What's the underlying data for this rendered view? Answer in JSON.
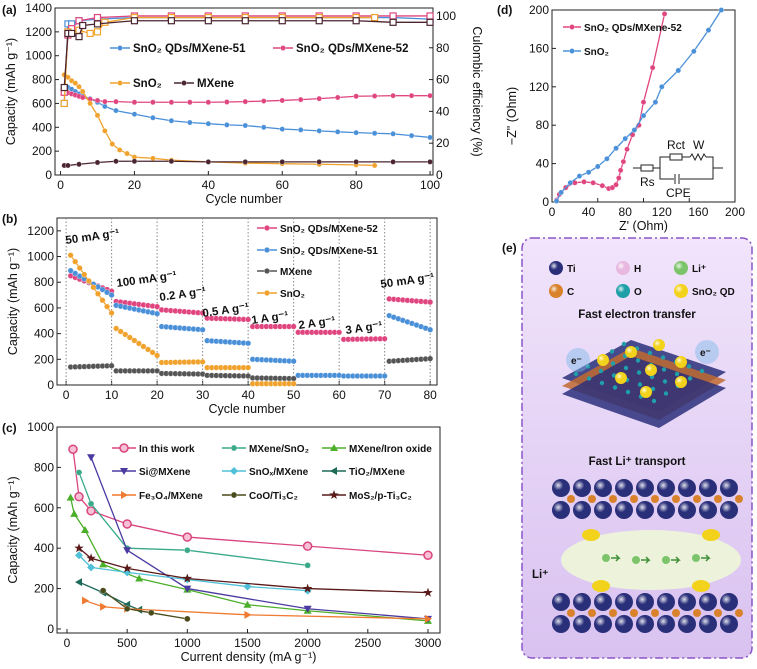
{
  "panels": {
    "a": "(a)",
    "b": "(b)",
    "c": "(c)",
    "d": "(d)",
    "e": "(e)"
  },
  "colors": {
    "blue": "#4a90d9",
    "pink": "#e0457f",
    "orange": "#f0a22c",
    "dark": "#4a2530",
    "grey": "#555555"
  },
  "chart_data": [
    {
      "id": "a",
      "type": "line",
      "xlabel": "Cycle number",
      "ylabel": "Capacity (mAh g⁻¹)",
      "y2label": "Culombic efficiency (%)",
      "xlim": [
        0,
        100
      ],
      "ylim": [
        0,
        1400
      ],
      "y2lim": [
        0,
        105
      ],
      "xticks": [
        0,
        20,
        40,
        60,
        80,
        100
      ],
      "yticks": [
        0,
        200,
        400,
        600,
        800,
        1000,
        1200,
        1400
      ],
      "y2ticks": [
        0,
        20,
        40,
        60,
        80,
        100
      ],
      "series": [
        {
          "name": "SnO₂ QDs/MXene-51",
          "color": "#4a90d9",
          "x": [
            1,
            2,
            3,
            4,
            5,
            6,
            8,
            10,
            12,
            15,
            20,
            25,
            30,
            35,
            40,
            45,
            50,
            55,
            60,
            65,
            70,
            75,
            80,
            85,
            90,
            95,
            100
          ],
          "y": [
            740,
            735,
            720,
            700,
            680,
            665,
            640,
            610,
            575,
            540,
            510,
            480,
            455,
            440,
            430,
            420,
            415,
            400,
            385,
            378,
            370,
            362,
            355,
            350,
            345,
            330,
            315
          ],
          "ce_x": [
            1,
            2,
            3,
            5,
            10,
            20,
            30,
            40,
            50,
            60,
            70,
            80,
            90,
            100
          ],
          "ce": [
            45,
            95,
            95,
            97,
            98,
            99,
            99,
            99,
            99,
            99,
            99,
            99,
            99,
            98
          ]
        },
        {
          "name": "SnO₂ QDs/MXene-52",
          "color": "#e0457f",
          "x": [
            1,
            2,
            3,
            4,
            5,
            6,
            8,
            10,
            12,
            15,
            20,
            25,
            30,
            35,
            40,
            45,
            50,
            55,
            60,
            65,
            70,
            75,
            80,
            85,
            90,
            95,
            100
          ],
          "y": [
            700,
            690,
            680,
            670,
            660,
            650,
            635,
            625,
            615,
            615,
            610,
            610,
            610,
            610,
            610,
            612,
            615,
            620,
            625,
            632,
            640,
            650,
            660,
            662,
            665,
            665,
            665
          ],
          "ce_x": [
            1,
            2,
            3,
            5,
            10,
            20,
            30,
            40,
            50,
            60,
            70,
            80,
            90,
            100
          ],
          "ce": [
            52,
            88,
            92,
            97,
            99,
            100,
            100,
            100,
            100,
            100,
            100,
            100,
            100,
            100
          ]
        },
        {
          "name": "SnO₂",
          "color": "#f0a22c",
          "x": [
            1,
            2,
            3,
            4,
            5,
            6,
            8,
            10,
            12,
            14,
            16,
            18,
            20,
            25,
            30,
            40,
            50,
            60,
            70,
            80,
            85
          ],
          "y": [
            840,
            820,
            790,
            770,
            740,
            700,
            600,
            500,
            370,
            260,
            210,
            180,
            150,
            140,
            125,
            110,
            100,
            95,
            90,
            85,
            80
          ],
          "ce_x": [
            1,
            2,
            5,
            8,
            10,
            12,
            20,
            30,
            40,
            50,
            60,
            70,
            80,
            85
          ],
          "ce": [
            45,
            90,
            91,
            89,
            90,
            96,
            99,
            99,
            99,
            99,
            99,
            99,
            99,
            99
          ]
        },
        {
          "name": "MXene",
          "color": "#4a2530",
          "x": [
            1,
            2,
            5,
            10,
            15,
            20,
            30,
            40,
            50,
            60,
            70,
            80,
            90,
            100
          ],
          "y": [
            80,
            80,
            90,
            105,
            115,
            115,
            115,
            110,
            110,
            110,
            110,
            110,
            110,
            110
          ],
          "ce_x": [
            1,
            2,
            3,
            5,
            6,
            10,
            20,
            30,
            40,
            50,
            60,
            70,
            80,
            90,
            100
          ],
          "ce": [
            55,
            89,
            89,
            87,
            94,
            95,
            97,
            97,
            97,
            97,
            97,
            97,
            97,
            96,
            96
          ]
        }
      ]
    },
    {
      "id": "b",
      "type": "line",
      "xlabel": "Cycle number",
      "ylabel": "Capacity (mAh g⁻¹)",
      "xlim": [
        0,
        80
      ],
      "ylim": [
        0,
        1300
      ],
      "xticks": [
        0,
        10,
        20,
        30,
        40,
        50,
        60,
        70,
        80
      ],
      "yticks": [
        0,
        200,
        400,
        600,
        800,
        1000,
        1200
      ],
      "rates": [
        "50 mA g⁻¹",
        "100 mA g⁻¹",
        "0.2 A g⁻¹",
        "0.5 A g⁻¹",
        "1 A g⁻¹",
        "2 A g⁻¹",
        "3 A g⁻¹",
        "50 mA g⁻¹"
      ],
      "series": [
        {
          "name": "SnO₂ QDs/MXene-52",
          "color": "#e0457f",
          "segments": [
            [
              850,
              730
            ],
            [
              650,
              610
            ],
            [
              585,
              560
            ],
            [
              520,
              510
            ],
            [
              455,
              455
            ],
            [
              410,
              410
            ],
            [
              355,
              360
            ],
            [
              670,
              645
            ]
          ]
        },
        {
          "name": "SnO₂ QDs/MXene-51",
          "color": "#4a90d9",
          "segments": [
            [
              890,
              700
            ],
            [
              620,
              555
            ],
            [
              455,
              430
            ],
            [
              345,
              325
            ],
            [
              200,
              185
            ],
            [
              75,
              75
            ],
            [
              70,
              70
            ],
            [
              540,
              430
            ]
          ]
        },
        {
          "name": "MXene",
          "color": "#555555",
          "segments": [
            [
              140,
              150
            ],
            [
              110,
              110
            ],
            [
              90,
              85
            ],
            [
              75,
              70
            ],
            [
              55,
              50
            ],
            [
              null,
              null
            ],
            [
              null,
              null
            ],
            [
              185,
              205
            ]
          ]
        },
        {
          "name": "SnO₂",
          "color": "#f0a22c",
          "segments": [
            [
              1010,
              560
            ],
            [
              440,
              230
            ],
            [
              175,
              180
            ],
            [
              135,
              135
            ],
            [
              10,
              10
            ],
            [
              null,
              null
            ],
            [
              null,
              null
            ],
            [
              null,
              null
            ]
          ]
        }
      ]
    },
    {
      "id": "c",
      "type": "line",
      "xlabel": "Current density (mA g⁻¹)",
      "ylabel": "Capacity (mAh g⁻¹)",
      "xlim": [
        -50,
        3100
      ],
      "ylim": [
        -20,
        1000
      ],
      "xticks": [
        0,
        500,
        1000,
        1500,
        2000,
        2500,
        3000
      ],
      "yticks": [
        0,
        200,
        400,
        600,
        800,
        1000
      ],
      "series": [
        {
          "name": "In this work",
          "color": "#d9457f",
          "marker": "circle",
          "x": [
            50,
            100,
            200,
            500,
            1000,
            2000,
            3000
          ],
          "y": [
            890,
            655,
            585,
            520,
            455,
            410,
            365
          ]
        },
        {
          "name": "MXene/SnO₂",
          "color": "#3aaa8a",
          "marker": "dot",
          "x": [
            100,
            200,
            500,
            1000,
            2000
          ],
          "y": [
            775,
            620,
            400,
            390,
            315
          ]
        },
        {
          "name": "MXene/Iron oxide",
          "color": "#4caf2a",
          "marker": "triangle",
          "x": [
            30,
            60,
            150,
            300,
            600,
            1000,
            1500,
            2000,
            3000
          ],
          "y": [
            650,
            570,
            490,
            320,
            250,
            195,
            120,
            90,
            40
          ]
        },
        {
          "name": "Si@MXene",
          "color": "#4b3aa0",
          "marker": "tri-down",
          "x": [
            200,
            500,
            1000,
            2000,
            3000
          ],
          "y": [
            850,
            390,
            200,
            100,
            50
          ]
        },
        {
          "name": "SnOₓ/MXene",
          "color": "#4fc0d8",
          "marker": "diamond",
          "x": [
            100,
            200,
            500,
            1000,
            1500,
            2000
          ],
          "y": [
            365,
            305,
            280,
            245,
            210,
            190
          ]
        },
        {
          "name": "TiO₂/MXene",
          "color": "#1f6b5a",
          "marker": "tri-left",
          "x": [
            100,
            300,
            500,
            600
          ],
          "y": [
            232,
            180,
            120,
            95
          ]
        },
        {
          "name": "Fe₃O₄/MXene",
          "color": "#f07a30",
          "marker": "tri-right",
          "x": [
            150,
            300,
            500,
            1500,
            3000
          ],
          "y": [
            140,
            110,
            100,
            70,
            50
          ]
        },
        {
          "name": "CoO/Ti₃C₂",
          "color": "#4a4a1a",
          "marker": "hex",
          "x": [
            300,
            500,
            700,
            1000
          ],
          "y": [
            190,
            100,
            80,
            50
          ]
        },
        {
          "name": "MoS₂/p-Ti₃C₂",
          "color": "#5a1a1a",
          "marker": "star",
          "x": [
            100,
            200,
            500,
            1000,
            2000,
            3000
          ],
          "y": [
            400,
            350,
            300,
            250,
            200,
            180
          ]
        }
      ]
    },
    {
      "id": "d",
      "type": "line",
      "xlabel": "Z' (Ohm)",
      "ylabel": "−Z\" (Ohm)",
      "xlim": [
        0,
        200
      ],
      "ylim": [
        0,
        200
      ],
      "xticks": [
        0,
        40,
        80,
        120,
        160,
        200
      ],
      "xticks_labeled": [
        0,
        50,
        100,
        150,
        200
      ],
      "yticks": [
        0,
        40,
        80,
        120,
        160,
        200
      ],
      "series": [
        {
          "name": "SnO₂ QDs/MXene-52",
          "color": "#e0457f",
          "x": [
            5,
            8,
            15,
            25,
            35,
            45,
            55,
            62,
            66,
            70,
            73,
            75,
            78,
            82,
            88,
            95,
            100,
            110,
            123
          ],
          "y": [
            2,
            8,
            15,
            20,
            21,
            20,
            17,
            14,
            15,
            18,
            25,
            33,
            42,
            55,
            70,
            80,
            104,
            140,
            196
          ]
        },
        {
          "name": "SnO₂",
          "color": "#4a90d9",
          "x": [
            5,
            10,
            20,
            30,
            40,
            50,
            60,
            70,
            80,
            90,
            100,
            113,
            120,
            138,
            155,
            171,
            185
          ],
          "y": [
            1,
            10,
            20,
            27,
            31,
            37,
            45,
            56,
            66,
            75,
            90,
            104,
            120,
            137,
            157,
            179,
            200
          ]
        }
      ],
      "circuit": {
        "rs": "Rs",
        "rct": "Rct",
        "w": "W",
        "cpe": "CPE"
      }
    }
  ],
  "panel_e": {
    "legend": [
      {
        "label": "Ti",
        "color": "#2a2f7a"
      },
      {
        "label": "H",
        "color": "#e8b8e0"
      },
      {
        "label": "Li⁺",
        "color": "#7cc46a"
      },
      {
        "label": "C",
        "color": "#d9822b"
      },
      {
        "label": "O",
        "color": "#1fa0a8"
      },
      {
        "label": "SnO₂ QD",
        "color": "#f2d21a"
      }
    ],
    "title1": "Fast electron transfer",
    "title2": "Fast Li⁺ transport",
    "li_label": "Li⁺",
    "electron": "e⁻"
  }
}
